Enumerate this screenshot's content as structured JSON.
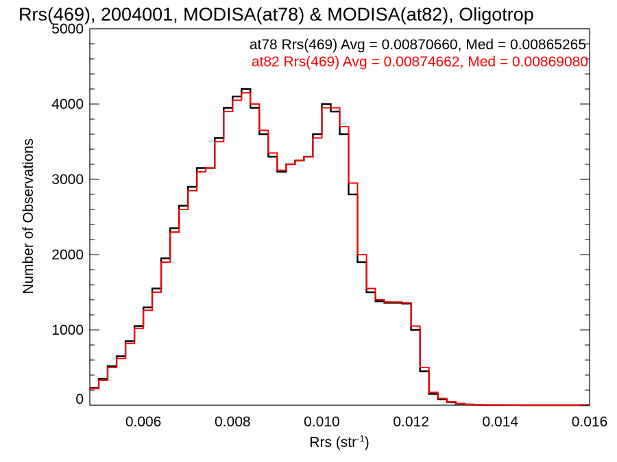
{
  "chart_data": {
    "type": "line",
    "title": "Rrs(469), 2004001, MODISA(at78) & MODISA(at82), Oligotrop",
    "xlabel": "Rrs (str",
    "xlabel_sup": "-1",
    "xlabel_suffix": ")",
    "ylabel": "Number of Observations",
    "xlim": [
      0.0048,
      0.016
    ],
    "ylim": [
      0,
      5000
    ],
    "grid": false,
    "x_ticks": [
      0.006,
      0.008,
      0.01,
      0.012,
      0.014,
      0.016
    ],
    "x_tick_labels": [
      "0.006",
      "0.008",
      "0.010",
      "0.012",
      "0.014",
      "0.016"
    ],
    "y_ticks": [
      0,
      1000,
      2000,
      3000,
      4000,
      5000
    ],
    "y_tick_labels": [
      "0",
      "1000",
      "2000",
      "3000",
      "4000",
      "5000"
    ],
    "annotations": [
      {
        "text": "at78 Rrs(469) Avg = 0.00870660, Med = 0.00865265",
        "color": "#000000"
      },
      {
        "text": "at82 Rrs(469) Avg = 0.00874662, Med = 0.00869080",
        "color": "#ff0000"
      }
    ],
    "series": [
      {
        "color": "#000000",
        "x": [
          0.0048,
          0.005,
          0.0052,
          0.0054,
          0.0056,
          0.0058,
          0.006,
          0.0062,
          0.0064,
          0.0066,
          0.0068,
          0.007,
          0.0072,
          0.0074,
          0.0076,
          0.0078,
          0.008,
          0.0082,
          0.0084,
          0.0086,
          0.0088,
          0.009,
          0.0092,
          0.0094,
          0.0096,
          0.0098,
          0.01,
          0.0102,
          0.0104,
          0.0106,
          0.0108,
          0.011,
          0.0112,
          0.0114,
          0.0116,
          0.0118,
          0.012,
          0.0122,
          0.0124,
          0.0126,
          0.0128,
          0.013,
          0.0132,
          0.0134,
          0.0136,
          0.0138,
          0.014,
          0.0145,
          0.015,
          0.0155,
          0.016
        ],
        "y": [
          230,
          350,
          520,
          650,
          850,
          1050,
          1300,
          1550,
          1950,
          2350,
          2650,
          2900,
          3150,
          3150,
          3550,
          3950,
          4100,
          4200,
          3950,
          3600,
          3300,
          3100,
          3200,
          3250,
          3300,
          3600,
          4000,
          3900,
          3600,
          2800,
          1900,
          1500,
          1380,
          1360,
          1360,
          1350,
          1000,
          450,
          150,
          80,
          40,
          20,
          10,
          5,
          3,
          2,
          1,
          0,
          0,
          0,
          0
        ]
      },
      {
        "color": "#ff0000",
        "x": [
          0.0048,
          0.005,
          0.0052,
          0.0054,
          0.0056,
          0.0058,
          0.006,
          0.0062,
          0.0064,
          0.0066,
          0.0068,
          0.007,
          0.0072,
          0.0074,
          0.0076,
          0.0078,
          0.008,
          0.0082,
          0.0084,
          0.0086,
          0.0088,
          0.009,
          0.0092,
          0.0094,
          0.0096,
          0.0098,
          0.01,
          0.0102,
          0.0104,
          0.0106,
          0.0108,
          0.011,
          0.0112,
          0.0114,
          0.0116,
          0.0118,
          0.012,
          0.0122,
          0.0124,
          0.0126,
          0.0128,
          0.013,
          0.0132,
          0.0134,
          0.0136,
          0.0138,
          0.014,
          0.0145,
          0.015,
          0.0155,
          0.016
        ],
        "y": [
          220,
          330,
          500,
          620,
          820,
          1020,
          1260,
          1500,
          1900,
          2300,
          2600,
          2850,
          3100,
          3150,
          3500,
          3900,
          4050,
          4150,
          4000,
          3650,
          3350,
          3120,
          3200,
          3250,
          3300,
          3550,
          3950,
          3950,
          3700,
          2950,
          2000,
          1550,
          1400,
          1370,
          1370,
          1360,
          1050,
          500,
          170,
          90,
          45,
          22,
          10,
          5,
          3,
          2,
          1,
          0,
          0,
          0,
          0
        ]
      }
    ]
  }
}
